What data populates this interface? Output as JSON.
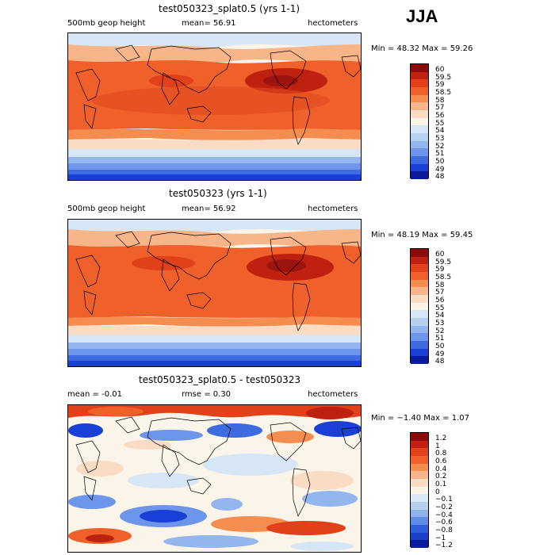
{
  "season": "JJA",
  "panels": [
    {
      "title": "test050323_splat0.5 (yrs 1-1)",
      "left_label": "500mb geop height",
      "mean_label": "mean=  56.91",
      "units": "hectometers",
      "minmax": "Min =  48.32 Max =  59.26",
      "levels": [
        "60",
        "59.5",
        "59",
        "58.5",
        "58",
        "57",
        "56",
        "55",
        "54",
        "53",
        "52",
        "51",
        "50",
        "49",
        "48"
      ],
      "colors": [
        "#8b0a0a",
        "#bf2110",
        "#e0401a",
        "#f0602a",
        "#f58c50",
        "#f8b58a",
        "#fadcc4",
        "#fbf4e8",
        "#d7e6f5",
        "#b6d1f0",
        "#93b6ee",
        "#6d96ea",
        "#3e6be0",
        "#1a3fd6",
        "#0a1a9a"
      ]
    },
    {
      "title": "test050323 (yrs 1-1)",
      "left_label": "500mb geop height",
      "mean_label": "mean=  56.92",
      "units": "hectometers",
      "minmax": "Min =  48.19 Max =  59.45",
      "levels": [
        "60",
        "59.5",
        "59",
        "58.5",
        "58",
        "57",
        "56",
        "55",
        "54",
        "53",
        "52",
        "51",
        "50",
        "49",
        "48"
      ],
      "colors": [
        "#8b0a0a",
        "#bf2110",
        "#e0401a",
        "#f0602a",
        "#f58c50",
        "#f8b58a",
        "#fadcc4",
        "#fbf4e8",
        "#d7e6f5",
        "#b6d1f0",
        "#93b6ee",
        "#6d96ea",
        "#3e6be0",
        "#1a3fd6",
        "#0a1a9a"
      ]
    },
    {
      "title": "test050323_splat0.5 - test050323",
      "left_label": "mean =   -0.01",
      "mean_label": "rmse =    0.30",
      "units": "hectometers",
      "minmax": "Min =  −1.40 Max =   1.07",
      "levels": [
        "1.2",
        "1",
        "0.8",
        "0.6",
        "0.4",
        "0.2",
        "0.1",
        "0",
        "−0.1",
        "−0.2",
        "−0.4",
        "−0.6",
        "−0.8",
        "−1",
        "−1.2"
      ],
      "colors": [
        "#8b0a0a",
        "#c41e12",
        "#e0401a",
        "#f0602a",
        "#f58c50",
        "#f8b58a",
        "#fadcc4",
        "#fbf4e8",
        "#dce8f6",
        "#b8d0f0",
        "#8fb2ec",
        "#5f8be6",
        "#2f5fdb",
        "#1a3fc8",
        "#0a1a9a"
      ]
    }
  ]
}
